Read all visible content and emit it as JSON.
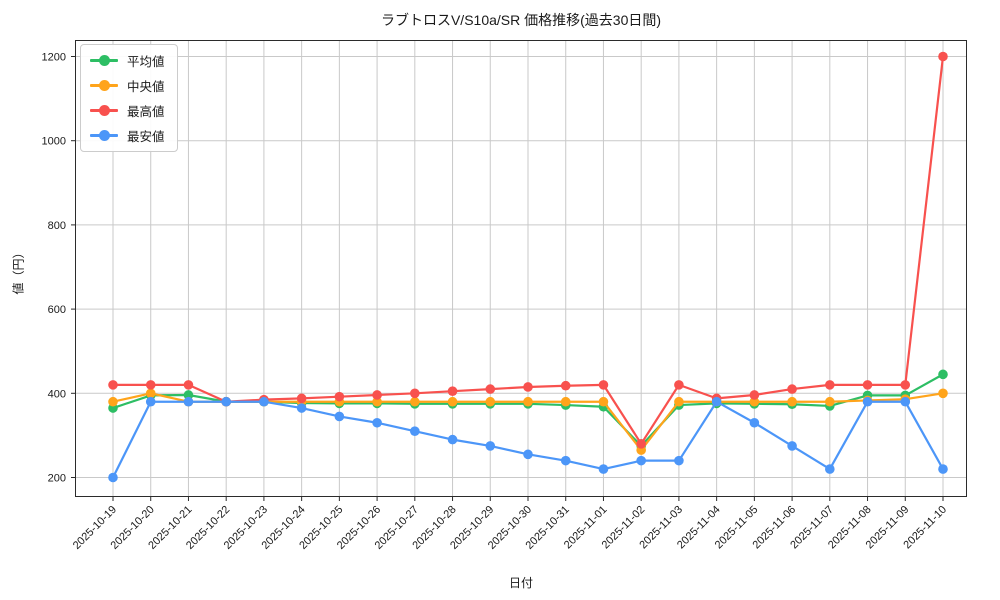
{
  "chart_data": {
    "type": "line",
    "title": "ラブトロスV/S10a/SR 価格推移(過去30日間)",
    "xlabel": "日付",
    "ylabel": "値（円）",
    "grid": true,
    "legend_position": "upper-left",
    "marker": "circle",
    "ylim": [
      150,
      1250
    ],
    "yticks": [
      "200",
      "400",
      "600",
      "800",
      "1000",
      "1200"
    ],
    "ytick_values": [
      200,
      400,
      600,
      800,
      1000,
      1200
    ],
    "x": [
      "2025-10-19",
      "2025-10-20",
      "2025-10-21",
      "2025-10-22",
      "2025-10-23",
      "2025-10-24",
      "2025-10-25",
      "2025-10-26",
      "2025-10-27",
      "2025-10-28",
      "2025-10-29",
      "2025-10-30",
      "2025-10-31",
      "2025-11-01",
      "2025-11-02",
      "2025-11-03",
      "2025-11-04",
      "2025-11-05",
      "2025-11-06",
      "2025-11-07",
      "2025-11-08",
      "2025-11-09",
      "2025-11-10"
    ],
    "series": [
      {
        "name": "平均値",
        "color": "#2dbe64",
        "values": [
          365,
          395,
          396,
          380,
          380,
          377,
          376,
          376,
          375,
          375,
          375,
          375,
          372,
          368,
          275,
          372,
          376,
          375,
          374,
          370,
          395,
          395,
          445
        ]
      },
      {
        "name": "中央値",
        "color": "#ffa41b",
        "values": [
          380,
          400,
          380,
          380,
          380,
          380,
          380,
          380,
          380,
          380,
          380,
          380,
          380,
          380,
          265,
          380,
          380,
          380,
          380,
          380,
          383,
          386,
          400
        ]
      },
      {
        "name": "最高値",
        "color": "#f8514e",
        "values": [
          420,
          420,
          420,
          380,
          385,
          388,
          392,
          396,
          400,
          405,
          410,
          415,
          418,
          420,
          280,
          420,
          388,
          396,
          410,
          420,
          420,
          420,
          1200
        ]
      },
      {
        "name": "最安値",
        "color": "#4c96f8",
        "values": [
          200,
          380,
          380,
          380,
          380,
          365,
          345,
          330,
          310,
          290,
          275,
          255,
          240,
          220,
          240,
          240,
          380,
          330,
          275,
          220,
          380,
          380,
          220
        ]
      }
    ],
    "colors": {
      "grid": "#c9c9c9",
      "spine": "#2b2b2b",
      "text": "#1a1a1a"
    }
  }
}
